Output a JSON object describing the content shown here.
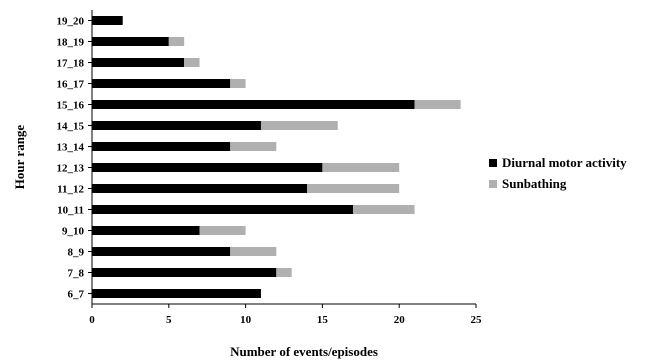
{
  "chart_data": {
    "type": "bar",
    "orientation": "horizontal",
    "stacked": true,
    "categories": [
      "6_7",
      "7_8",
      "8_9",
      "9_10",
      "10_11",
      "11_12",
      "12_13",
      "13_14",
      "14_15",
      "15_16",
      "16_17",
      "17_18",
      "18_19",
      "19_20"
    ],
    "series": [
      {
        "name": "Diurnal motor activity",
        "color": "#000000",
        "values": [
          11,
          12,
          9,
          7,
          17,
          14,
          15,
          9,
          11,
          21,
          9,
          6,
          5,
          2
        ]
      },
      {
        "name": "Sunbathing",
        "color": "#b0b0b0",
        "values": [
          0,
          1,
          3,
          3,
          4,
          6,
          5,
          3,
          5,
          3,
          1,
          1,
          1,
          0
        ]
      }
    ],
    "xlabel": "Number of events/episodes",
    "ylabel": "Hour range",
    "xlim": [
      0,
      25
    ],
    "xticks": [
      "0",
      "5",
      "10",
      "15",
      "20",
      "25"
    ],
    "grid": false,
    "legend_position": "right"
  }
}
